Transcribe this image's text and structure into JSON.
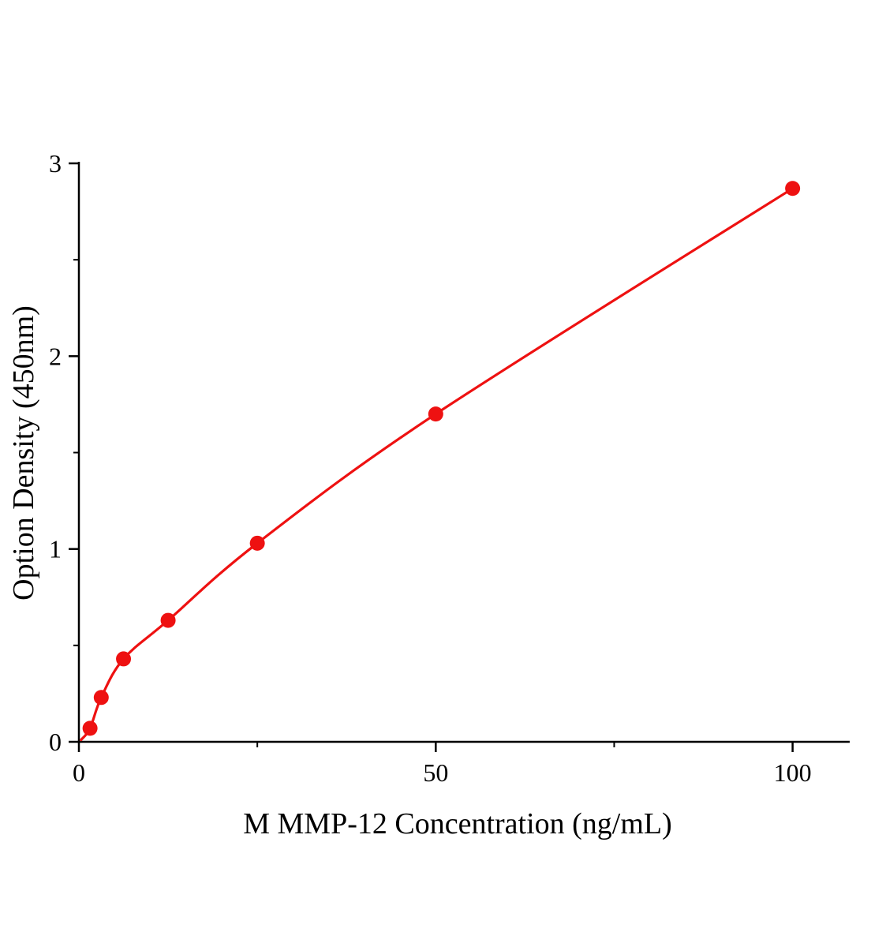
{
  "chart_data": {
    "type": "scatter",
    "title": "",
    "xlabel": "M MMP-12  Concentration (ng/mL)",
    "ylabel": "Option Density (450nm)",
    "x": [
      1.56,
      3.13,
      6.25,
      12.5,
      25,
      50,
      100
    ],
    "y": [
      0.07,
      0.23,
      0.43,
      0.63,
      1.03,
      1.7,
      2.87
    ],
    "curve_start": [
      0.3,
      0.01
    ],
    "xlim": [
      0,
      108
    ],
    "ylim": [
      0,
      3
    ],
    "xticks": [
      0,
      50,
      100
    ],
    "xtick_labels": [
      "0",
      "50",
      "100"
    ],
    "minor_xticks": [
      25,
      75
    ],
    "yticks": [
      0,
      1,
      2,
      3
    ],
    "ytick_labels": [
      "0",
      "1",
      "2",
      "3"
    ],
    "minor_yticks": [
      0.5,
      1.5,
      2.5
    ],
    "series_color": "#ee1111",
    "axis_color": "#000000",
    "marker_size": 9.5,
    "line_width": 3.2,
    "grid": false,
    "legend": "none",
    "fit": "smooth power-like standard curve"
  }
}
